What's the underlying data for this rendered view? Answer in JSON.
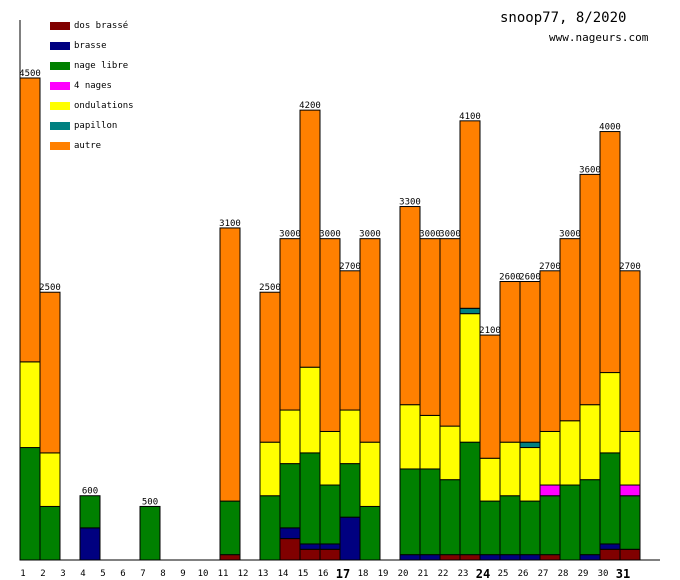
{
  "header": {
    "title": "snoop77, 8/2020",
    "site": "www.nageurs.com"
  },
  "chart_data": {
    "type": "bar",
    "stacked": true,
    "title": "snoop77, 8/2020",
    "xlabel": "",
    "ylabel": "",
    "ylim": [
      0,
      4500
    ],
    "categories": [
      "1",
      "2",
      "3",
      "4",
      "5",
      "6",
      "7",
      "8",
      "9",
      "10",
      "11",
      "12",
      "13",
      "14",
      "15",
      "16",
      "17",
      "18",
      "19",
      "20",
      "21",
      "22",
      "23",
      "24",
      "25",
      "26",
      "27",
      "28",
      "29",
      "30",
      "31"
    ],
    "bold_categories": [
      "17",
      "24",
      "31"
    ],
    "totals": [
      4500,
      2500,
      0,
      600,
      0,
      0,
      500,
      0,
      0,
      0,
      3100,
      0,
      2500,
      3000,
      4200,
      3000,
      2700,
      3000,
      0,
      3300,
      3000,
      3000,
      4100,
      2100,
      2600,
      2600,
      2700,
      3000,
      3600,
      4000,
      2700
    ],
    "series": [
      {
        "name": "dos brassé",
        "color": "#800000",
        "values": [
          0,
          0,
          0,
          0,
          0,
          0,
          0,
          0,
          0,
          0,
          50,
          0,
          0,
          200,
          100,
          100,
          0,
          0,
          0,
          0,
          0,
          50,
          50,
          0,
          0,
          0,
          50,
          0,
          0,
          100,
          100
        ]
      },
      {
        "name": "brasse",
        "color": "#000080",
        "values": [
          0,
          0,
          0,
          300,
          0,
          0,
          0,
          0,
          0,
          0,
          0,
          0,
          0,
          100,
          50,
          50,
          400,
          0,
          0,
          50,
          50,
          0,
          0,
          50,
          50,
          50,
          0,
          0,
          50,
          50,
          0
        ]
      },
      {
        "name": "nage libre",
        "color": "#008000",
        "values": [
          1050,
          500,
          0,
          300,
          0,
          0,
          500,
          0,
          0,
          0,
          500,
          0,
          600,
          600,
          850,
          550,
          500,
          500,
          0,
          800,
          800,
          700,
          1050,
          500,
          550,
          500,
          550,
          700,
          700,
          850,
          500
        ]
      },
      {
        "name": "4 nages",
        "color": "#ff00ff",
        "values": [
          0,
          0,
          0,
          0,
          0,
          0,
          0,
          0,
          0,
          0,
          0,
          0,
          0,
          0,
          0,
          0,
          0,
          0,
          0,
          0,
          0,
          0,
          0,
          0,
          0,
          0,
          100,
          0,
          0,
          0,
          100
        ]
      },
      {
        "name": "ondulations",
        "color": "#ffff00",
        "values": [
          800,
          500,
          0,
          0,
          0,
          0,
          0,
          0,
          0,
          0,
          0,
          0,
          500,
          500,
          800,
          500,
          500,
          600,
          0,
          600,
          500,
          500,
          1200,
          400,
          500,
          500,
          500,
          600,
          700,
          750,
          500
        ]
      },
      {
        "name": "papillon",
        "color": "#008080",
        "values": [
          0,
          0,
          0,
          0,
          0,
          0,
          0,
          0,
          0,
          0,
          0,
          0,
          0,
          0,
          0,
          0,
          0,
          0,
          0,
          0,
          0,
          0,
          50,
          0,
          0,
          50,
          0,
          0,
          0,
          0,
          0
        ]
      },
      {
        "name": "autre",
        "color": "#ff8000",
        "values": [
          2650,
          1500,
          0,
          0,
          0,
          0,
          0,
          0,
          0,
          0,
          2550,
          0,
          1400,
          1600,
          2400,
          1800,
          1300,
          1900,
          0,
          1850,
          1650,
          1750,
          1750,
          1150,
          1500,
          1500,
          1500,
          1700,
          2150,
          2250,
          1500
        ]
      }
    ]
  }
}
